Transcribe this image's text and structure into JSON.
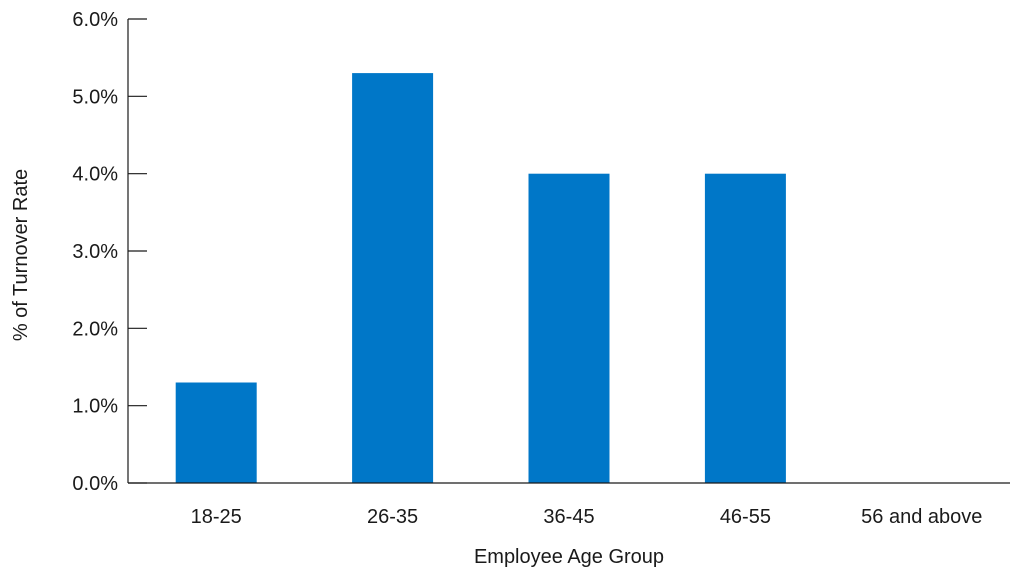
{
  "chart_data": {
    "type": "bar",
    "title": "",
    "xlabel": "Employee Age Group",
    "ylabel": "% of Turnover Rate",
    "categories": [
      "18-25",
      "26-35",
      "36-45",
      "46-55",
      "56 and above"
    ],
    "values": [
      1.3,
      5.3,
      4.0,
      4.0,
      0.0
    ],
    "ylim": [
      0,
      6
    ],
    "yticks": [
      0,
      1,
      2,
      3,
      4,
      5,
      6
    ],
    "ytick_labels": [
      "0.0%",
      "1.0%",
      "2.0%",
      "3.0%",
      "4.0%",
      "5.0%",
      "6.0%"
    ],
    "value_unit": "%",
    "grid": false,
    "legend": "none",
    "bar_color": "#0077c8",
    "axis_color": "#1a1a1a"
  }
}
